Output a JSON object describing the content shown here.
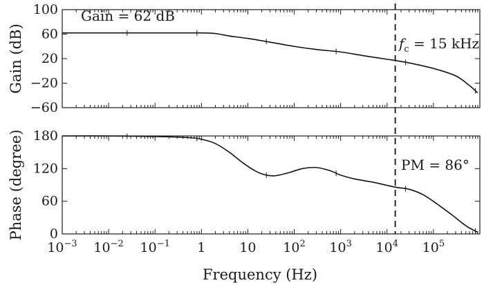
{
  "chart_data": [
    {
      "type": "line",
      "panel": "gain",
      "xscale": "log",
      "xlim": [
        0.001,
        1000000
      ],
      "ylim": [
        -60,
        100
      ],
      "ylabel": "Gain (dB)",
      "yticks": [
        100,
        60,
        20,
        -20,
        -60
      ],
      "ytick_labels": [
        "100",
        "60",
        "20",
        "−20",
        "−60"
      ],
      "annotation": "Gain = 62 dB",
      "series": [
        {
          "x": [
            0.001,
            0.01,
            0.1,
            1,
            2,
            4,
            10,
            30,
            100,
            300,
            1000,
            3000,
            10000,
            15000,
            30000,
            100000,
            300000,
            600000,
            900000
          ],
          "y": [
            62,
            62,
            62,
            62,
            61,
            57,
            53,
            47,
            40,
            35,
            31,
            25,
            19,
            17,
            13,
            4,
            -8,
            -24,
            -36
          ]
        }
      ],
      "grid": false
    },
    {
      "type": "line",
      "panel": "phase",
      "xscale": "log",
      "xlim": [
        0.001,
        1000000
      ],
      "ylim": [
        0,
        180
      ],
      "xlabel": "Frequency (Hz)",
      "ylabel": "Phase (degree)",
      "yticks": [
        180,
        120,
        60,
        0
      ],
      "xtick_labels": [
        {
          "base": "10",
          "exp": "−3",
          "value": 0.001
        },
        {
          "base": "10",
          "exp": "−2",
          "value": 0.01
        },
        {
          "base": "10",
          "exp": "−1",
          "value": 0.1
        },
        {
          "base": "1",
          "exp": "",
          "value": 1
        },
        {
          "base": "10",
          "exp": "",
          "value": 10
        },
        {
          "base": "10",
          "exp": "2",
          "value": 100
        },
        {
          "base": "10",
          "exp": "3",
          "value": 1000
        },
        {
          "base": "10",
          "exp": "4",
          "value": 10000
        },
        {
          "base": "10",
          "exp": "5",
          "value": 100000
        }
      ],
      "annotation": "PM = 86°",
      "series": [
        {
          "x": [
            0.001,
            0.01,
            0.1,
            0.5,
            1,
            2,
            4,
            8,
            15,
            25,
            40,
            80,
            150,
            300,
            600,
            1000,
            2000,
            5000,
            15000,
            30000,
            60000,
            120000,
            250000,
            500000,
            900000
          ],
          "y": [
            180,
            180,
            179,
            177,
            174,
            166,
            150,
            130,
            115,
            108,
            107,
            113,
            120,
            122,
            116,
            108,
            101,
            95,
            86,
            82,
            72,
            55,
            35,
            15,
            3
          ]
        }
      ],
      "grid": false
    }
  ],
  "crossover": {
    "frequency": 15000,
    "label_var": "f",
    "label_sub": "c",
    "label_rest": " = 15 kHz"
  }
}
